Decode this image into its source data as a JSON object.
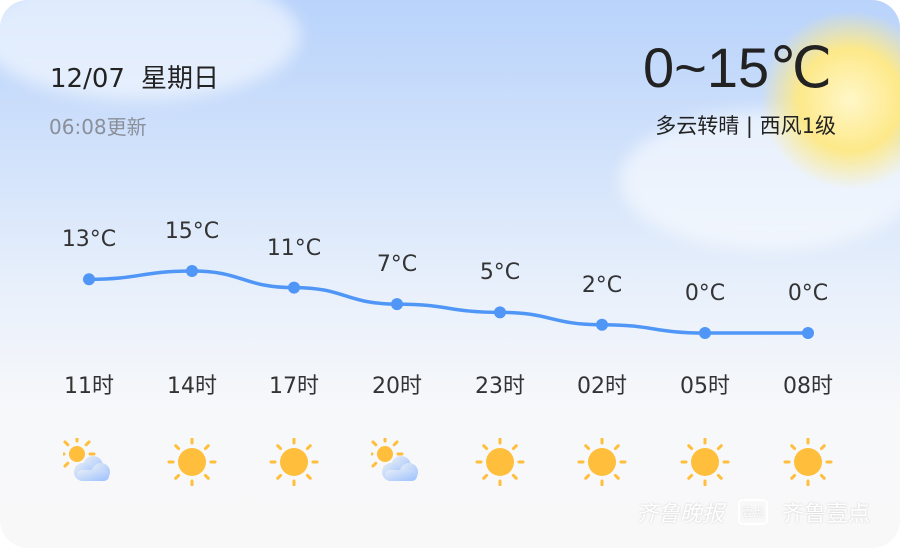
{
  "header": {
    "date": "12/07",
    "weekday": "星期日",
    "updated": "06:08更新",
    "temp_range": "0~15℃",
    "condition": "多云转晴 | 西风1级"
  },
  "hourly": [
    {
      "time": "11时",
      "temp": 13,
      "label": "13°C",
      "icon": "partly-cloudy-icon"
    },
    {
      "time": "14时",
      "temp": 15,
      "label": "15°C",
      "icon": "sun-icon"
    },
    {
      "time": "17时",
      "temp": 11,
      "label": "11°C",
      "icon": "sun-icon"
    },
    {
      "time": "20时",
      "temp": 7,
      "label": "7°C",
      "icon": "partly-cloudy-icon"
    },
    {
      "time": "23时",
      "temp": 5,
      "label": "5°C",
      "icon": "sun-icon"
    },
    {
      "time": "02时",
      "temp": 2,
      "label": "2°C",
      "icon": "sun-icon"
    },
    {
      "time": "05时",
      "temp": 0,
      "label": "0°C",
      "icon": "sun-icon"
    },
    {
      "time": "08时",
      "temp": 0,
      "label": "0°C",
      "icon": "sun-icon"
    }
  ],
  "colors": {
    "line": "#4f96f7",
    "sun": "#ffbe3b"
  },
  "watermark": {
    "left": "齐鲁晚报",
    "right": "齐鲁壹点",
    "badge": "壹点"
  }
}
